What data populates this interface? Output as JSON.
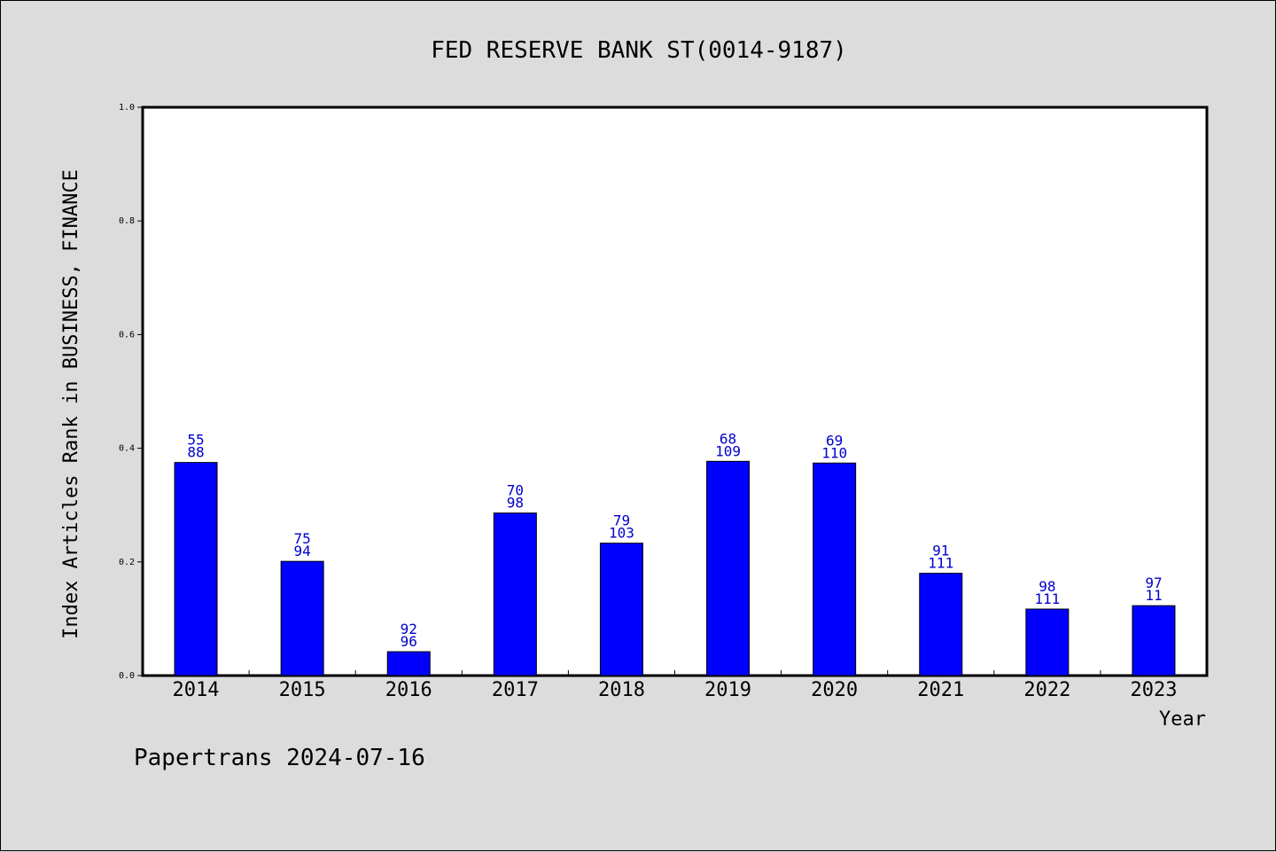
{
  "chart_data": {
    "type": "bar",
    "title": "FED RESERVE BANK ST(0014-9187)",
    "ylabel": "Index Articles Rank in BUSINESS, FINANCE",
    "xlabel": "Year",
    "categories": [
      "2014",
      "2015",
      "2016",
      "2017",
      "2018",
      "2019",
      "2020",
      "2021",
      "2022",
      "2023"
    ],
    "values": [
      0.375,
      0.201,
      0.042,
      0.286,
      0.233,
      0.377,
      0.374,
      0.18,
      0.117,
      0.123
    ],
    "labels_top": [
      "55",
      "75",
      "92",
      "70",
      "79",
      "68",
      "69",
      "91",
      "98",
      "97"
    ],
    "labels_bottom": [
      "88",
      "94",
      "96",
      "98",
      "103",
      "109",
      "110",
      "111",
      "111",
      "11"
    ],
    "ylim": [
      0,
      1.0
    ],
    "yticks": [
      "0.0",
      "0.2",
      "0.4",
      "0.6",
      "0.8",
      "1.0"
    ],
    "bar_color": "#0000ff",
    "label_color": "#0000cc",
    "grid": false,
    "legend": "none"
  },
  "footer": {
    "text": "Papertrans 2024-07-16"
  }
}
